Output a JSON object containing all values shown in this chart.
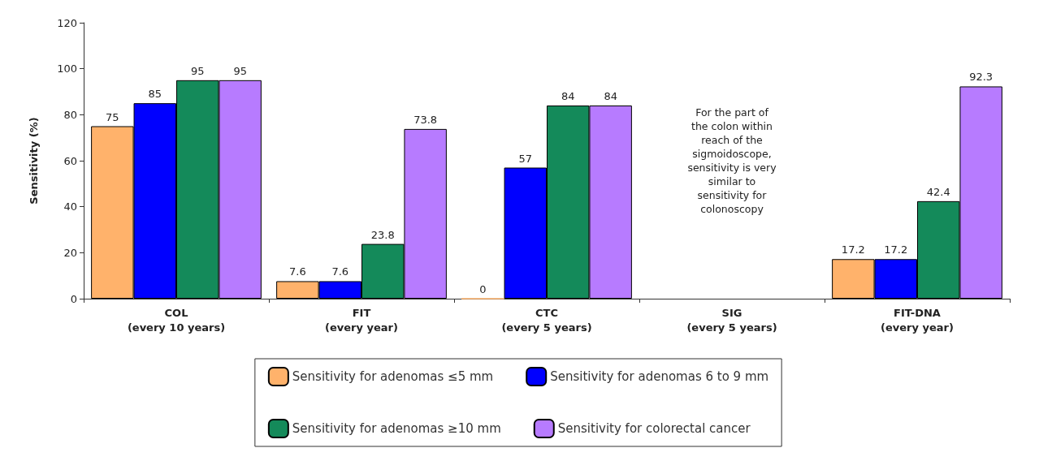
{
  "chart_data": {
    "type": "bar",
    "ylabel": "Sensitivity (%)",
    "categories": [
      "COL\n(every 10 years)",
      "FIT\n(every year)",
      "CTC\n(every 5 years)",
      "SIG\n(every 5 years)",
      "FIT-DNA\n(every year)"
    ],
    "series": [
      {
        "name": "Sensitivity for adenomas ≤5 mm",
        "color": "#ffb26b",
        "values": [
          75,
          7.6,
          0,
          null,
          17.2
        ]
      },
      {
        "name": "Sensitivity for adenomas 6 to 9 mm",
        "color": "#0000ff",
        "values": [
          85,
          7.6,
          57,
          null,
          17.2
        ]
      },
      {
        "name": "Sensitivity for adenomas ≥10 mm",
        "color": "#148a5a",
        "values": [
          95,
          23.8,
          84,
          null,
          42.4
        ]
      },
      {
        "name": "Sensitivity for colorectal cancer",
        "color": "#b77bff",
        "values": [
          95,
          73.8,
          84,
          null,
          92.3
        ]
      }
    ],
    "ylim": [
      0,
      120
    ],
    "yticks": [
      0,
      20,
      40,
      60,
      80,
      100,
      120
    ],
    "grid": false,
    "data_labels": true,
    "legend": "bottom",
    "annotations": [
      "For the part of\nthe colon within\nreach of the\nsigmoidoscope,\nsensitivity is very\nsimilar to\nsensitivity for\ncolonoscopy"
    ]
  }
}
